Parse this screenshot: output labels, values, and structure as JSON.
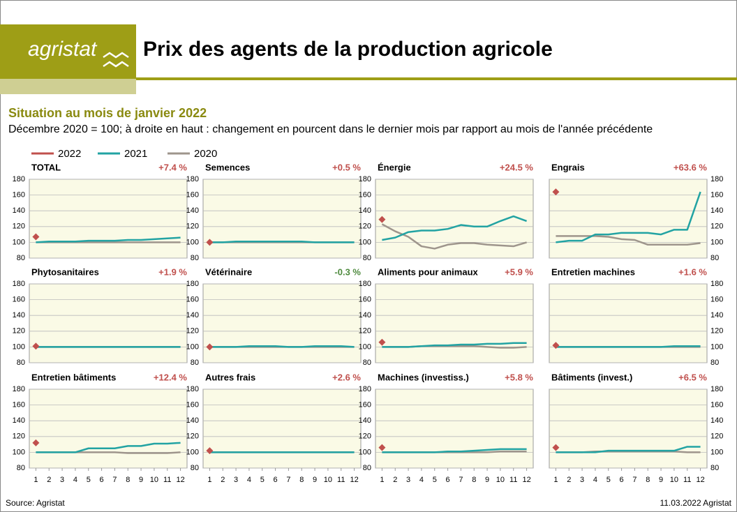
{
  "header": {
    "logo": "agristat",
    "title": "Prix des agents de la production agricole"
  },
  "subtitle": "Situation au mois de janvier 2022",
  "description": "Décembre 2020 = 100; à droite en haut : changement en pourcent dans le dernier mois par rapport au mois de l'année précédente",
  "footer": {
    "source": "Source: Agristat",
    "date": "11.03.2022 Agristat"
  },
  "chart_data": [
    {
      "type": "line",
      "title": "TOTAL",
      "annotation": "+7.4 %",
      "annotation_color": "#c0504d",
      "x": [
        1,
        2,
        3,
        4,
        5,
        6,
        7,
        8,
        9,
        10,
        11,
        12
      ],
      "xlim": [
        0.5,
        12.5
      ],
      "ylim": [
        80,
        180
      ],
      "yticks": [
        80,
        100,
        120,
        140,
        160,
        180
      ],
      "grid": true,
      "series": [
        {
          "name": "2022",
          "color": "#c0504d",
          "values": [
            107,
            null,
            null,
            null,
            null,
            null,
            null,
            null,
            null,
            null,
            null,
            null
          ]
        },
        {
          "name": "2021",
          "color": "#22a3a3",
          "values": [
            100,
            101,
            101,
            101,
            102,
            102,
            102,
            103,
            103,
            104,
            105,
            106
          ]
        },
        {
          "name": "2020",
          "color": "#9e958c",
          "values": [
            100,
            100,
            100,
            100,
            100,
            100,
            100,
            100,
            100,
            100,
            100,
            100
          ]
        }
      ]
    },
    {
      "type": "line",
      "title": "Semences",
      "annotation": "+0.5 %",
      "annotation_color": "#c0504d",
      "x": [
        1,
        2,
        3,
        4,
        5,
        6,
        7,
        8,
        9,
        10,
        11,
        12
      ],
      "xlim": [
        0.5,
        12.5
      ],
      "ylim": [
        80,
        180
      ],
      "yticks": [
        80,
        100,
        120,
        140,
        160,
        180
      ],
      "grid": true,
      "series": [
        {
          "name": "2022",
          "color": "#c0504d",
          "values": [
            100,
            null,
            null,
            null,
            null,
            null,
            null,
            null,
            null,
            null,
            null,
            null
          ]
        },
        {
          "name": "2021",
          "color": "#22a3a3",
          "values": [
            100,
            100,
            101,
            101,
            101,
            101,
            101,
            101,
            100,
            100,
            100,
            100
          ]
        },
        {
          "name": "2020",
          "color": "#9e958c",
          "values": [
            100,
            100,
            100,
            100,
            100,
            100,
            100,
            100,
            100,
            100,
            100,
            100
          ]
        }
      ]
    },
    {
      "type": "line",
      "title": "Énergie",
      "annotation": "+24.5 %",
      "annotation_color": "#c0504d",
      "x": [
        1,
        2,
        3,
        4,
        5,
        6,
        7,
        8,
        9,
        10,
        11,
        12
      ],
      "xlim": [
        0.5,
        12.5
      ],
      "ylim": [
        80,
        180
      ],
      "yticks": [
        80,
        100,
        120,
        140,
        160,
        180
      ],
      "grid": true,
      "series": [
        {
          "name": "2022",
          "color": "#c0504d",
          "values": [
            129,
            null,
            null,
            null,
            null,
            null,
            null,
            null,
            null,
            null,
            null,
            null
          ]
        },
        {
          "name": "2021",
          "color": "#22a3a3",
          "values": [
            103,
            106,
            113,
            115,
            115,
            117,
            122,
            120,
            120,
            127,
            133,
            127
          ]
        },
        {
          "name": "2020",
          "color": "#9e958c",
          "values": [
            123,
            114,
            107,
            95,
            92,
            97,
            99,
            99,
            97,
            96,
            95,
            100
          ]
        }
      ]
    },
    {
      "type": "line",
      "title": "Engrais",
      "annotation": "+63.6 %",
      "annotation_color": "#c0504d",
      "x": [
        1,
        2,
        3,
        4,
        5,
        6,
        7,
        8,
        9,
        10,
        11,
        12
      ],
      "xlim": [
        0.5,
        12.5
      ],
      "ylim": [
        80,
        180
      ],
      "yticks": [
        80,
        100,
        120,
        140,
        160,
        180
      ],
      "grid": true,
      "series": [
        {
          "name": "2022",
          "color": "#c0504d",
          "values": [
            164,
            null,
            null,
            null,
            null,
            null,
            null,
            null,
            null,
            null,
            null,
            null
          ]
        },
        {
          "name": "2021",
          "color": "#22a3a3",
          "values": [
            100,
            102,
            102,
            110,
            110,
            112,
            112,
            112,
            110,
            116,
            116,
            164
          ]
        },
        {
          "name": "2020",
          "color": "#9e958c",
          "values": [
            108,
            108,
            108,
            108,
            107,
            104,
            103,
            97,
            97,
            97,
            97,
            99
          ]
        }
      ]
    },
    {
      "type": "line",
      "title": "Phytosanitaires",
      "annotation": "+1.9 %",
      "annotation_color": "#c0504d",
      "x": [
        1,
        2,
        3,
        4,
        5,
        6,
        7,
        8,
        9,
        10,
        11,
        12
      ],
      "xlim": [
        0.5,
        12.5
      ],
      "ylim": [
        80,
        180
      ],
      "yticks": [
        80,
        100,
        120,
        140,
        160,
        180
      ],
      "grid": true,
      "series": [
        {
          "name": "2022",
          "color": "#c0504d",
          "values": [
            101,
            null,
            null,
            null,
            null,
            null,
            null,
            null,
            null,
            null,
            null,
            null
          ]
        },
        {
          "name": "2021",
          "color": "#22a3a3",
          "values": [
            100,
            100,
            100,
            100,
            100,
            100,
            100,
            100,
            100,
            100,
            100,
            100
          ]
        },
        {
          "name": "2020",
          "color": "#9e958c",
          "values": [
            100,
            100,
            100,
            100,
            100,
            100,
            100,
            100,
            100,
            100,
            100,
            100
          ]
        }
      ]
    },
    {
      "type": "line",
      "title": "Vétérinaire",
      "annotation": "-0.3 %",
      "annotation_color": "#4e8a3e",
      "x": [
        1,
        2,
        3,
        4,
        5,
        6,
        7,
        8,
        9,
        10,
        11,
        12
      ],
      "xlim": [
        0.5,
        12.5
      ],
      "ylim": [
        80,
        180
      ],
      "yticks": [
        80,
        100,
        120,
        140,
        160,
        180
      ],
      "grid": true,
      "series": [
        {
          "name": "2022",
          "color": "#c0504d",
          "values": [
            100,
            null,
            null,
            null,
            null,
            null,
            null,
            null,
            null,
            null,
            null,
            null
          ]
        },
        {
          "name": "2021",
          "color": "#22a3a3",
          "values": [
            100,
            100,
            100,
            101,
            101,
            101,
            100,
            100,
            101,
            101,
            101,
            100
          ]
        },
        {
          "name": "2020",
          "color": "#9e958c",
          "values": [
            100,
            100,
            100,
            100,
            100,
            100,
            100,
            100,
            100,
            100,
            100,
            100
          ]
        }
      ]
    },
    {
      "type": "line",
      "title": "Aliments pour animaux",
      "annotation": "+5.9 %",
      "annotation_color": "#c0504d",
      "x": [
        1,
        2,
        3,
        4,
        5,
        6,
        7,
        8,
        9,
        10,
        11,
        12
      ],
      "xlim": [
        0.5,
        12.5
      ],
      "ylim": [
        80,
        180
      ],
      "yticks": [
        80,
        100,
        120,
        140,
        160,
        180
      ],
      "grid": true,
      "series": [
        {
          "name": "2022",
          "color": "#c0504d",
          "values": [
            106,
            null,
            null,
            null,
            null,
            null,
            null,
            null,
            null,
            null,
            null,
            null
          ]
        },
        {
          "name": "2021",
          "color": "#22a3a3",
          "values": [
            100,
            100,
            100,
            101,
            102,
            102,
            103,
            103,
            104,
            104,
            105,
            105
          ]
        },
        {
          "name": "2020",
          "color": "#9e958c",
          "values": [
            100,
            100,
            100,
            101,
            101,
            101,
            101,
            101,
            100,
            99,
            99,
            100
          ]
        }
      ]
    },
    {
      "type": "line",
      "title": "Entretien machines",
      "annotation": "+1.6 %",
      "annotation_color": "#c0504d",
      "x": [
        1,
        2,
        3,
        4,
        5,
        6,
        7,
        8,
        9,
        10,
        11,
        12
      ],
      "xlim": [
        0.5,
        12.5
      ],
      "ylim": [
        80,
        180
      ],
      "yticks": [
        80,
        100,
        120,
        140,
        160,
        180
      ],
      "grid": true,
      "series": [
        {
          "name": "2022",
          "color": "#c0504d",
          "values": [
            102,
            null,
            null,
            null,
            null,
            null,
            null,
            null,
            null,
            null,
            null,
            null
          ]
        },
        {
          "name": "2021",
          "color": "#22a3a3",
          "values": [
            100,
            100,
            100,
            100,
            100,
            100,
            100,
            100,
            100,
            101,
            101,
            101
          ]
        },
        {
          "name": "2020",
          "color": "#9e958c",
          "values": [
            100,
            100,
            100,
            100,
            100,
            100,
            100,
            100,
            100,
            100,
            100,
            100
          ]
        }
      ]
    },
    {
      "type": "line",
      "title": "Entretien bâtiments",
      "annotation": "+12.4 %",
      "annotation_color": "#c0504d",
      "x": [
        1,
        2,
        3,
        4,
        5,
        6,
        7,
        8,
        9,
        10,
        11,
        12
      ],
      "xlim": [
        0.5,
        12.5
      ],
      "ylim": [
        80,
        180
      ],
      "yticks": [
        80,
        100,
        120,
        140,
        160,
        180
      ],
      "xticks": [
        1,
        2,
        3,
        4,
        5,
        6,
        7,
        8,
        9,
        10,
        11,
        12
      ],
      "grid": true,
      "series": [
        {
          "name": "2022",
          "color": "#c0504d",
          "values": [
            112,
            null,
            null,
            null,
            null,
            null,
            null,
            null,
            null,
            null,
            null,
            null
          ]
        },
        {
          "name": "2021",
          "color": "#22a3a3",
          "values": [
            100,
            100,
            100,
            100,
            105,
            105,
            105,
            108,
            108,
            111,
            111,
            112
          ]
        },
        {
          "name": "2020",
          "color": "#9e958c",
          "values": [
            100,
            100,
            100,
            100,
            100,
            100,
            100,
            99,
            99,
            99,
            99,
            100
          ]
        }
      ]
    },
    {
      "type": "line",
      "title": "Autres frais",
      "annotation": "+2.6 %",
      "annotation_color": "#c0504d",
      "x": [
        1,
        2,
        3,
        4,
        5,
        6,
        7,
        8,
        9,
        10,
        11,
        12
      ],
      "xlim": [
        0.5,
        12.5
      ],
      "ylim": [
        80,
        180
      ],
      "yticks": [
        80,
        100,
        120,
        140,
        160,
        180
      ],
      "xticks": [
        1,
        2,
        3,
        4,
        5,
        6,
        7,
        8,
        9,
        10,
        11,
        12
      ],
      "grid": true,
      "series": [
        {
          "name": "2022",
          "color": "#c0504d",
          "values": [
            102,
            null,
            null,
            null,
            null,
            null,
            null,
            null,
            null,
            null,
            null,
            null
          ]
        },
        {
          "name": "2021",
          "color": "#22a3a3",
          "values": [
            100,
            100,
            100,
            100,
            100,
            100,
            100,
            100,
            100,
            100,
            100,
            100
          ]
        },
        {
          "name": "2020",
          "color": "#9e958c",
          "values": [
            100,
            100,
            100,
            100,
            100,
            100,
            100,
            100,
            100,
            100,
            100,
            100
          ]
        }
      ]
    },
    {
      "type": "line",
      "title": "Machines (investiss.)",
      "annotation": "+5.8 %",
      "annotation_color": "#c0504d",
      "x": [
        1,
        2,
        3,
        4,
        5,
        6,
        7,
        8,
        9,
        10,
        11,
        12
      ],
      "xlim": [
        0.5,
        12.5
      ],
      "ylim": [
        80,
        180
      ],
      "yticks": [
        80,
        100,
        120,
        140,
        160,
        180
      ],
      "xticks": [
        1,
        2,
        3,
        4,
        5,
        6,
        7,
        8,
        9,
        10,
        11,
        12
      ],
      "grid": true,
      "series": [
        {
          "name": "2022",
          "color": "#c0504d",
          "values": [
            106,
            null,
            null,
            null,
            null,
            null,
            null,
            null,
            null,
            null,
            null,
            null
          ]
        },
        {
          "name": "2021",
          "color": "#22a3a3",
          "values": [
            100,
            100,
            100,
            100,
            100,
            101,
            101,
            102,
            103,
            104,
            104,
            104
          ]
        },
        {
          "name": "2020",
          "color": "#9e958c",
          "values": [
            100,
            100,
            100,
            100,
            100,
            100,
            100,
            100,
            100,
            101,
            101,
            101
          ]
        }
      ]
    },
    {
      "type": "line",
      "title": "Bâtiments (invest.)",
      "annotation": "+6.5 %",
      "annotation_color": "#c0504d",
      "x": [
        1,
        2,
        3,
        4,
        5,
        6,
        7,
        8,
        9,
        10,
        11,
        12
      ],
      "xlim": [
        0.5,
        12.5
      ],
      "ylim": [
        80,
        180
      ],
      "yticks": [
        80,
        100,
        120,
        140,
        160,
        180
      ],
      "xticks": [
        1,
        2,
        3,
        4,
        5,
        6,
        7,
        8,
        9,
        10,
        11,
        12
      ],
      "grid": true,
      "series": [
        {
          "name": "2022",
          "color": "#c0504d",
          "values": [
            106,
            null,
            null,
            null,
            null,
            null,
            null,
            null,
            null,
            null,
            null,
            null
          ]
        },
        {
          "name": "2021",
          "color": "#22a3a3",
          "values": [
            100,
            100,
            100,
            100,
            102,
            102,
            102,
            102,
            102,
            102,
            107,
            107
          ]
        },
        {
          "name": "2020",
          "color": "#9e958c",
          "values": [
            100,
            100,
            100,
            101,
            101,
            101,
            101,
            101,
            101,
            101,
            100,
            100
          ]
        }
      ]
    }
  ]
}
